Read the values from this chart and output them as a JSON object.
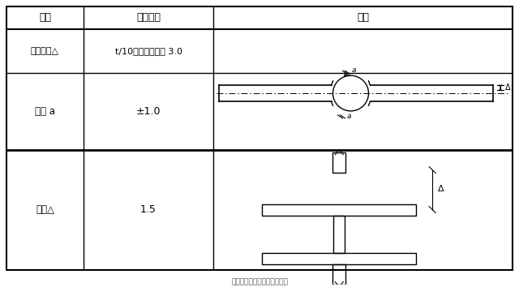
{
  "bg_color": "#ffffff",
  "col1_header": "项目",
  "col2_header": "允许偏差",
  "col3_header": "图例",
  "row1_col1": "对口错边△",
  "row1_col2": "t/10，且不应大于 3.0",
  "row2_col1": "间隙 a",
  "row2_col2": "±1.0",
  "row3_col1": "缝隙△",
  "row3_col2": "1.5",
  "line_color": "#000000",
  "text_color": "#000000",
  "footer_text": "机械设备安装施工及验收规范"
}
